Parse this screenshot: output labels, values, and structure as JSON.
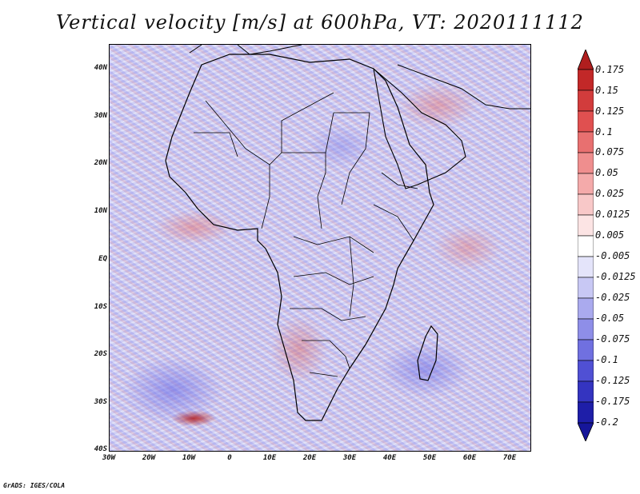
{
  "title": "Vertical velocity [m/s] at 600hPa, VT: 2020111112",
  "credit": "GrADS: IGES/COLA",
  "map": {
    "lat_ticks": [
      "40N",
      "30N",
      "20N",
      "10N",
      "EQ",
      "10S",
      "20S",
      "30S",
      "40S"
    ],
    "lon_ticks": [
      "30W",
      "20W",
      "10W",
      "0",
      "10E",
      "20E",
      "30E",
      "40E",
      "50E",
      "60E",
      "70E"
    ]
  },
  "colorbar": {
    "labels": [
      "0.175",
      "0.15",
      "0.125",
      "0.1",
      "0.075",
      "0.05",
      "0.025",
      "0.0125",
      "0.005",
      "-0.005",
      "-0.0125",
      "-0.025",
      "-0.05",
      "-0.075",
      "-0.1",
      "-0.125",
      "-0.175",
      "-0.2"
    ],
    "colors": [
      "#b01e1e",
      "#c22828",
      "#d23c3c",
      "#e05050",
      "#e87070",
      "#ef8e8e",
      "#f4aaaa",
      "#f8c8c8",
      "#fce4e4",
      "#ffffff",
      "#e4e4fa",
      "#c8c8f4",
      "#aaaaee",
      "#8e8ee8",
      "#7070e0",
      "#5050d4",
      "#3434c0",
      "#1e1ea8",
      "#16169a"
    ]
  }
}
